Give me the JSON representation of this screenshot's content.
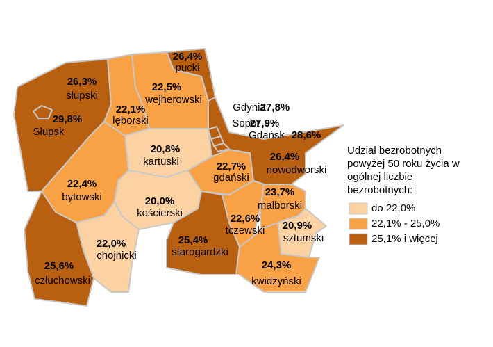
{
  "map": {
    "regions": [
      {
        "name": "słupski",
        "value": 26.3,
        "value_label": "26,3%",
        "color": "#b8600f"
      },
      {
        "name": "Słupsk",
        "value": 29.8,
        "value_label": "29,8%",
        "color": "#b8600f"
      },
      {
        "name": "lęborski",
        "value": 22.1,
        "value_label": "22,1%",
        "color": "#f8a145"
      },
      {
        "name": "pucki",
        "value": 26.4,
        "value_label": "26,4%",
        "color": "#b8600f"
      },
      {
        "name": "wejherowski",
        "value": 22.5,
        "value_label": "22,5%",
        "color": "#f8a145"
      },
      {
        "name": "kartuski",
        "value": 20.8,
        "value_label": "20,8%",
        "color": "#fcd2a3"
      },
      {
        "name": "gdański",
        "value": 22.7,
        "value_label": "22,7%",
        "color": "#f8a145"
      },
      {
        "name": "nowodworski",
        "value": 26.4,
        "value_label": "26,4%",
        "color": "#b8600f"
      },
      {
        "name": "bytowski",
        "value": 22.4,
        "value_label": "22,4%",
        "color": "#f8a145"
      },
      {
        "name": "kościerski",
        "value": 20.0,
        "value_label": "20,0%",
        "color": "#fcd2a3"
      },
      {
        "name": "chojnicki",
        "value": 22.0,
        "value_label": "22,0%",
        "color": "#fcd2a3"
      },
      {
        "name": "człuchowski",
        "value": 25.6,
        "value_label": "25,6%",
        "color": "#b8600f"
      },
      {
        "name": "starogardzki",
        "value": 25.4,
        "value_label": "25,4%",
        "color": "#b8600f"
      },
      {
        "name": "tczewski",
        "value": 22.6,
        "value_label": "22,6%",
        "color": "#f8a145"
      },
      {
        "name": "malborski",
        "value": 23.7,
        "value_label": "23,7%",
        "color": "#f8a145"
      },
      {
        "name": "sztumski",
        "value": 20.9,
        "value_label": "20,9%",
        "color": "#fcd2a3"
      },
      {
        "name": "kwidzyński",
        "value": 24.3,
        "value_label": "24,3%",
        "color": "#f8a145"
      },
      {
        "name": "Gdynia",
        "value": 27.8,
        "value_label": "27,8%",
        "color": "#b8600f"
      },
      {
        "name": "Sopot",
        "value": 27.9,
        "value_label": "27,9%",
        "color": "#b8600f"
      },
      {
        "name": "Gdańsk",
        "value": 28.6,
        "value_label": "28,6%",
        "color": "#b8600f"
      }
    ],
    "legend": {
      "title": "Udział bezrobotnych powyżej 50 roku życia w ogólnej liczbie bezrobotnych:",
      "items": [
        {
          "label": "do 22,0%",
          "color": "#fcd2a3"
        },
        {
          "label": "22,1% - 25,0%",
          "color": "#f8a145"
        },
        {
          "label": "25,1% i więcej",
          "color": "#b8600f"
        }
      ]
    }
  }
}
